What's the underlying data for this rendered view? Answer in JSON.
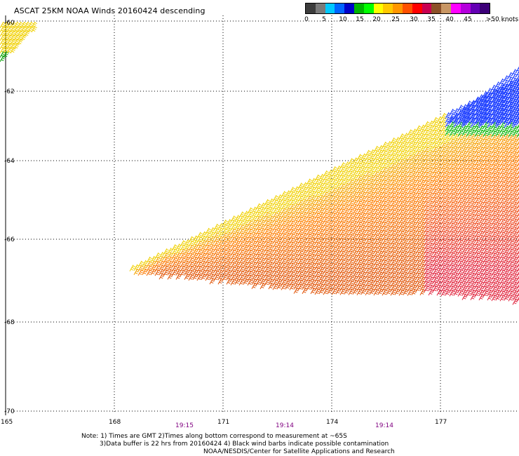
{
  "title": "ASCAT 25KM NOAA Winds 20160424 descending",
  "legend": {
    "colors": [
      "#3c3c3c",
      "#7a7a7a",
      "#00c8ff",
      "#0064ff",
      "#0000c8",
      "#00b400",
      "#00ff00",
      "#ffff00",
      "#ffc800",
      "#ff9600",
      "#ff5000",
      "#ff0000",
      "#c80050",
      "#8c5028",
      "#c89664",
      "#ff00ff",
      "#b400dc",
      "#6400b4",
      "#3c0078"
    ],
    "labels": [
      "0",
      "5",
      "10",
      "15",
      "20",
      "25",
      "30",
      "35",
      "40",
      "45",
      ">50 knots"
    ]
  },
  "map": {
    "lat_labels": [
      "-60",
      "-62",
      "-64",
      "-66",
      "-68",
      "-70"
    ],
    "lon_labels": [
      "165",
      "168",
      "171",
      "174",
      "177"
    ],
    "time_labels": [
      "19:15",
      "19:14",
      "19:14"
    ]
  },
  "notes": {
    "line1": "Note: 1) Times are GMT 2)Times along bottom correspond to measurement at ~65S",
    "line2": "3)Data buffer is 22 hrs from 20160424 4) Black wind barbs indicate possible contamination",
    "line3": "NOAA/NESDIS/Center for Satellite Applications and Research"
  }
}
